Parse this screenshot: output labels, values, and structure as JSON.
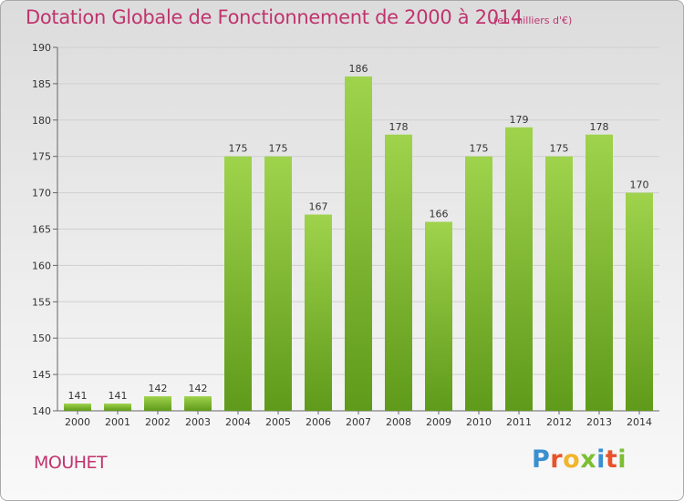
{
  "header": {
    "title": "Dotation Globale de Fonctionnement de 2000 à 2014",
    "unit": "(en milliers d'€)"
  },
  "footer": {
    "commune": "MOUHET",
    "brand": "Proxiti"
  },
  "colors": {
    "title": "#c0346e",
    "bar_light": "#9fd34c",
    "bar_dark": "#5f9a1a",
    "brand_letters": [
      "#3a8fd0",
      "#e8532b",
      "#f0b52b",
      "#7cbf33",
      "#3a8fd0",
      "#e8532b",
      "#7cbf33"
    ]
  },
  "chart_data": {
    "type": "bar",
    "title": "Dotation Globale de Fonctionnement de 2000 à 2014",
    "categories": [
      "2000",
      "2001",
      "2002",
      "2003",
      "2004",
      "2005",
      "2006",
      "2007",
      "2008",
      "2009",
      "2010",
      "2011",
      "2012",
      "2013",
      "2014"
    ],
    "values": [
      141,
      141,
      142,
      142,
      175,
      175,
      167,
      186,
      178,
      166,
      175,
      179,
      175,
      178,
      170
    ],
    "ylim": [
      140,
      190
    ],
    "yticks": [
      140,
      145,
      150,
      155,
      160,
      165,
      170,
      175,
      180,
      185,
      190
    ],
    "xlabel": "",
    "ylabel": "",
    "grid": true
  }
}
